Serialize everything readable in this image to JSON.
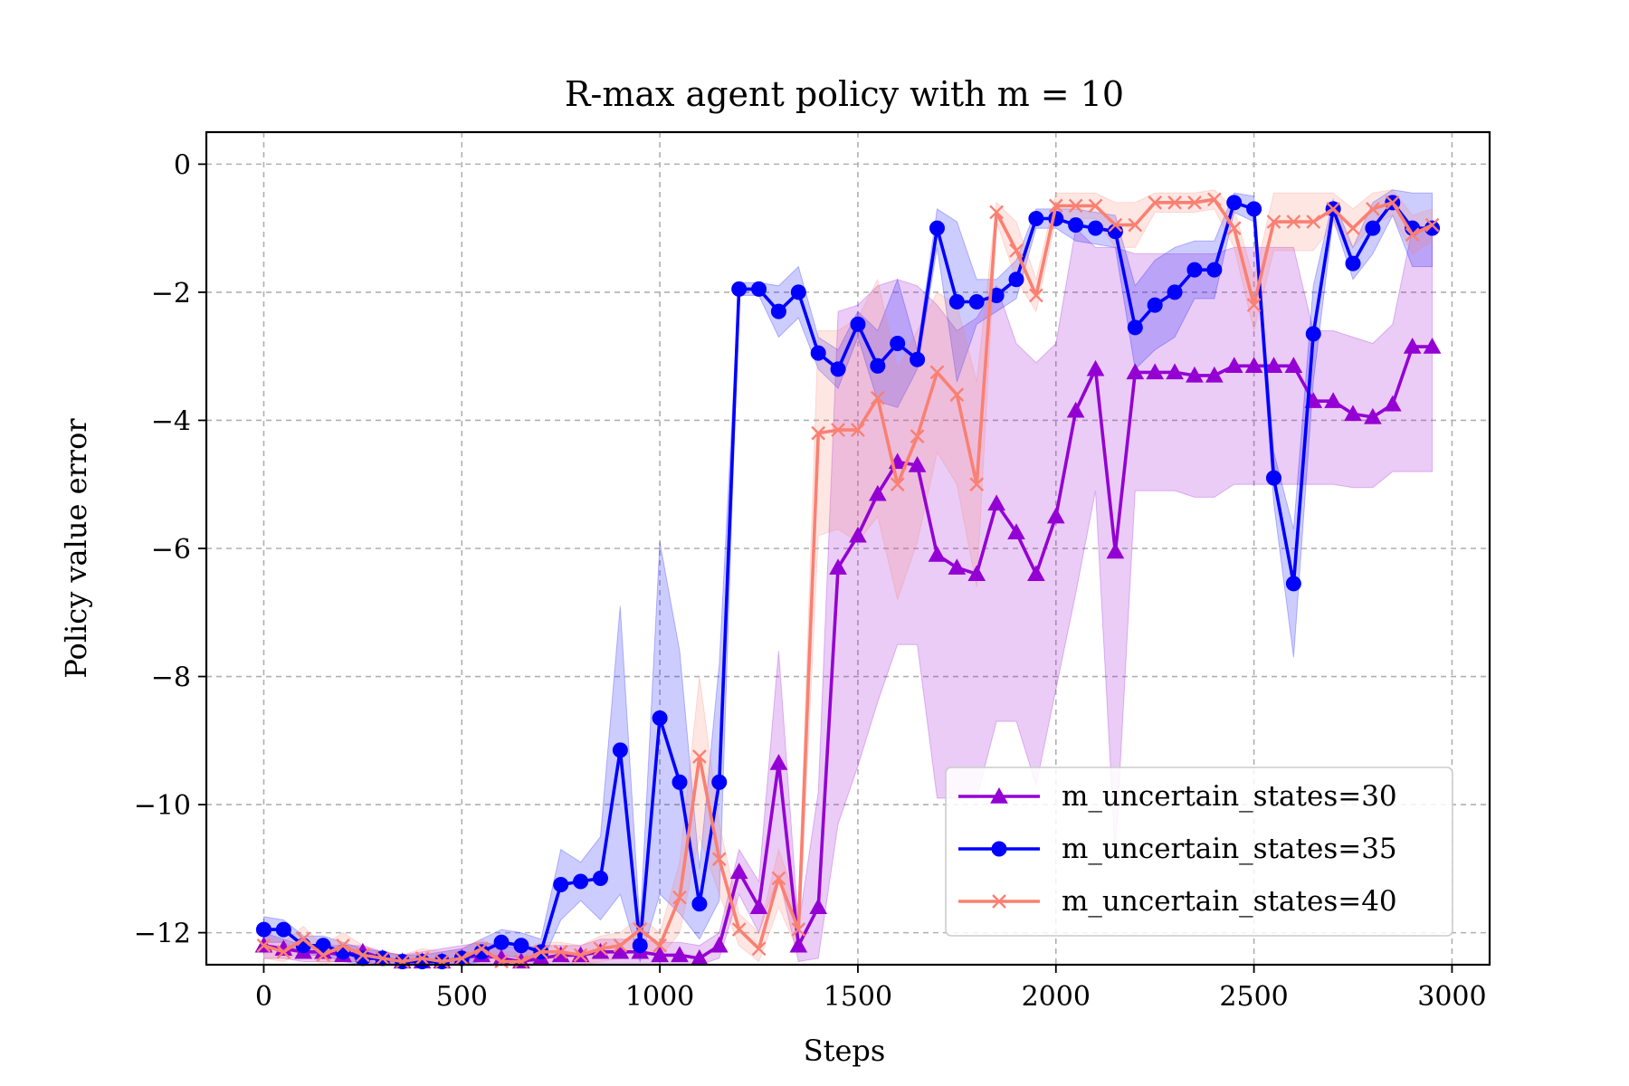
{
  "chart_data": {
    "type": "line",
    "title": "R-max agent policy with m = 10",
    "xlabel": "Steps",
    "ylabel": "Policy value error",
    "xlim": [
      -145,
      3095
    ],
    "ylim": [
      -12.5,
      0.5
    ],
    "xticks": [
      0,
      500,
      1000,
      1500,
      2000,
      2500,
      3000
    ],
    "yticks": [
      0,
      -2,
      -4,
      -6,
      -8,
      -10,
      -12
    ],
    "xtick_labels": [
      "0",
      "500",
      "1000",
      "1500",
      "2000",
      "2500",
      "3000"
    ],
    "ytick_labels": [
      "0",
      "−2",
      "−4",
      "−6",
      "−8",
      "−10",
      "−12"
    ],
    "grid": true,
    "legend_position": "lower-right",
    "x": [
      0,
      50,
      100,
      150,
      200,
      250,
      300,
      350,
      400,
      450,
      500,
      550,
      600,
      650,
      700,
      750,
      800,
      850,
      900,
      950,
      1000,
      1050,
      1100,
      1150,
      1200,
      1250,
      1300,
      1350,
      1400,
      1450,
      1500,
      1550,
      1600,
      1650,
      1700,
      1750,
      1800,
      1850,
      1900,
      1950,
      2000,
      2050,
      2100,
      2150,
      2200,
      2250,
      2300,
      2350,
      2400,
      2450,
      2500,
      2550,
      2600,
      2650,
      2700,
      2750,
      2800,
      2850,
      2900,
      2950
    ],
    "series": [
      {
        "name": "m_uncertain_states=30",
        "color": "#9400d3",
        "marker": "triangle",
        "values": [
          -12.2,
          -12.25,
          -12.3,
          -12.3,
          -12.35,
          -12.3,
          -12.4,
          -12.45,
          -12.45,
          -12.45,
          -12.4,
          -12.35,
          -12.4,
          -12.45,
          -12.4,
          -12.35,
          -12.35,
          -12.3,
          -12.3,
          -12.3,
          -12.35,
          -12.35,
          -12.4,
          -12.2,
          -11.05,
          -11.6,
          -9.35,
          -12.2,
          -11.6,
          -6.3,
          -5.8,
          -5.15,
          -4.65,
          -4.7,
          -6.1,
          -6.3,
          -6.4,
          -5.3,
          -5.75,
          -6.4,
          -5.5,
          -3.85,
          -3.2,
          -6.05,
          -3.25,
          -3.25,
          -3.25,
          -3.3,
          -3.3,
          -3.15,
          -3.15,
          -3.15,
          -3.15,
          -3.7,
          -3.7,
          -3.9,
          -3.95,
          -3.75,
          -2.85,
          -2.85
        ],
        "band_upper": [
          -12.0,
          -12.1,
          -12.2,
          -12.2,
          -12.2,
          -12.2,
          -12.3,
          -12.35,
          -12.3,
          -12.25,
          -12.2,
          -12.15,
          -12.2,
          -12.25,
          -12.2,
          -12.2,
          -12.2,
          -12.1,
          -12.1,
          -12.1,
          -12.15,
          -12.15,
          -12.2,
          -12.0,
          -10.7,
          -11.2,
          -7.6,
          -11.9,
          -9.8,
          -2.3,
          -2.2,
          -1.9,
          -1.8,
          -1.9,
          -2.2,
          -2.6,
          -2.4,
          -1.9,
          -2.8,
          -3.1,
          -2.8,
          -1.0,
          -1.3,
          -1.3,
          -1.4,
          -1.4,
          -1.4,
          -1.4,
          -1.4,
          -1.3,
          -1.3,
          -1.3,
          -1.3,
          -2.6,
          -2.6,
          -2.7,
          -2.8,
          -2.5,
          -1.0,
          -1.0
        ],
        "band_lower": [
          -12.4,
          -12.4,
          -12.45,
          -12.45,
          -12.45,
          -12.45,
          -12.5,
          -12.5,
          -12.5,
          -12.5,
          -12.5,
          -12.5,
          -12.5,
          -12.5,
          -12.5,
          -12.5,
          -12.5,
          -12.5,
          -12.5,
          -12.5,
          -12.5,
          -12.5,
          -12.5,
          -12.4,
          -11.4,
          -12.0,
          -11.1,
          -12.45,
          -12.4,
          -10.3,
          -9.4,
          -8.4,
          -7.5,
          -7.5,
          -9.9,
          -9.9,
          -9.9,
          -8.7,
          -8.7,
          -9.7,
          -8.2,
          -6.7,
          -5.1,
          -10.8,
          -5.1,
          -5.1,
          -5.1,
          -5.2,
          -5.2,
          -5.0,
          -5.0,
          -5.0,
          -5.0,
          -5.0,
          -5.0,
          -5.05,
          -5.05,
          -4.8,
          -4.8,
          -4.8
        ]
      },
      {
        "name": "m_uncertain_states=35",
        "color": "#0000ff",
        "marker": "circle",
        "values": [
          -11.95,
          -11.95,
          -12.2,
          -12.2,
          -12.3,
          -12.4,
          -12.4,
          -12.45,
          -12.45,
          -12.45,
          -12.4,
          -12.3,
          -12.15,
          -12.2,
          -12.3,
          -11.25,
          -11.2,
          -11.15,
          -9.15,
          -12.2,
          -8.65,
          -9.65,
          -11.55,
          -9.65,
          -1.95,
          -1.95,
          -2.3,
          -2.0,
          -2.95,
          -3.2,
          -2.5,
          -3.15,
          -2.8,
          -3.05,
          -1.0,
          -2.15,
          -2.15,
          -2.05,
          -1.8,
          -0.85,
          -0.85,
          -0.95,
          -1.0,
          -1.05,
          -2.55,
          -2.2,
          -2.0,
          -1.65,
          -1.65,
          -0.6,
          -0.7,
          -4.9,
          -6.55,
          -2.65,
          -0.7,
          -1.55,
          -1.0,
          -0.6,
          -1.0,
          -1.0
        ],
        "band_upper": [
          -11.75,
          -11.8,
          -12.05,
          -12.05,
          -12.15,
          -12.25,
          -12.3,
          -12.35,
          -12.35,
          -12.3,
          -12.25,
          -12.1,
          -11.95,
          -12.0,
          -12.1,
          -10.7,
          -10.9,
          -10.5,
          -6.9,
          -11.9,
          -5.9,
          -7.6,
          -11.0,
          -7.8,
          -1.85,
          -1.85,
          -1.9,
          -1.6,
          -2.7,
          -2.9,
          -2.3,
          -2.6,
          -1.8,
          -2.9,
          -0.7,
          -0.9,
          -1.8,
          -1.8,
          -1.5,
          -0.7,
          -0.7,
          -0.7,
          -0.75,
          -0.8,
          -1.9,
          -1.5,
          -1.3,
          -1.2,
          -1.2,
          -0.45,
          -0.5,
          -4.5,
          -5.7,
          -1.9,
          -0.55,
          -1.3,
          -0.6,
          -0.4,
          -0.45,
          -0.45
        ],
        "band_lower": [
          -12.15,
          -12.15,
          -12.35,
          -12.35,
          -12.45,
          -12.5,
          -12.5,
          -12.5,
          -12.5,
          -12.5,
          -12.5,
          -12.45,
          -12.35,
          -12.4,
          -12.5,
          -11.8,
          -11.5,
          -11.8,
          -11.4,
          -12.45,
          -11.4,
          -11.7,
          -12.1,
          -11.5,
          -2.05,
          -2.05,
          -2.7,
          -2.4,
          -3.2,
          -3.5,
          -2.7,
          -3.7,
          -3.8,
          -3.2,
          -1.3,
          -3.4,
          -2.5,
          -2.3,
          -2.1,
          -1.0,
          -1.0,
          -1.2,
          -1.25,
          -1.3,
          -3.2,
          -2.9,
          -2.7,
          -2.1,
          -2.1,
          -0.75,
          -0.9,
          -5.3,
          -7.7,
          -3.4,
          -0.85,
          -1.8,
          -1.4,
          -0.8,
          -1.6,
          -1.6
        ]
      },
      {
        "name": "m_uncertain_states=40",
        "color": "#fa8072",
        "marker": "x",
        "values": [
          -12.2,
          -12.3,
          -12.1,
          -12.35,
          -12.2,
          -12.35,
          -12.4,
          -12.45,
          -12.4,
          -12.45,
          -12.4,
          -12.25,
          -12.45,
          -12.45,
          -12.3,
          -12.3,
          -12.35,
          -12.25,
          -12.2,
          -11.95,
          -12.2,
          -11.45,
          -9.25,
          -10.85,
          -11.95,
          -12.25,
          -11.15,
          -11.95,
          -4.2,
          -4.15,
          -4.15,
          -3.65,
          -5.0,
          -4.25,
          -3.25,
          -3.6,
          -5.0,
          -0.75,
          -1.35,
          -2.05,
          -0.65,
          -0.65,
          -0.65,
          -0.95,
          -0.95,
          -0.6,
          -0.6,
          -0.6,
          -0.55,
          -1.0,
          -2.2,
          -0.9,
          -0.9,
          -0.9,
          -0.7,
          -1.0,
          -0.7,
          -0.6,
          -1.1,
          -0.95
        ],
        "band_upper": [
          -12.0,
          -12.15,
          -11.9,
          -12.2,
          -12.0,
          -12.2,
          -12.3,
          -12.35,
          -12.25,
          -12.3,
          -12.25,
          -12.1,
          -12.3,
          -12.3,
          -12.15,
          -12.15,
          -12.2,
          -12.05,
          -12.0,
          -11.75,
          -12.0,
          -10.9,
          -8.0,
          -10.3,
          -11.7,
          -12.0,
          -10.7,
          -11.6,
          -2.6,
          -2.6,
          -2.4,
          -1.8,
          -3.2,
          -2.6,
          -2.0,
          -2.2,
          -3.4,
          -0.6,
          -0.9,
          -1.8,
          -0.45,
          -0.45,
          -0.45,
          -0.6,
          -0.6,
          -0.45,
          -0.45,
          -0.45,
          -0.4,
          -0.7,
          -1.8,
          -0.45,
          -0.45,
          -0.45,
          -0.45,
          -0.7,
          -0.45,
          -0.4,
          -0.8,
          -0.7
        ],
        "band_lower": [
          -12.4,
          -12.45,
          -12.3,
          -12.5,
          -12.4,
          -12.5,
          -12.5,
          -12.5,
          -12.5,
          -12.5,
          -12.5,
          -12.4,
          -12.5,
          -12.5,
          -12.45,
          -12.45,
          -12.5,
          -12.45,
          -12.4,
          -12.15,
          -12.4,
          -12.0,
          -10.5,
          -11.4,
          -12.2,
          -12.45,
          -11.6,
          -12.3,
          -5.8,
          -5.7,
          -5.9,
          -5.5,
          -6.8,
          -5.9,
          -4.5,
          -5.0,
          -6.6,
          -0.9,
          -1.8,
          -2.3,
          -0.85,
          -0.85,
          -0.85,
          -1.3,
          -1.3,
          -0.75,
          -0.75,
          -0.75,
          -0.7,
          -1.3,
          -2.6,
          -1.35,
          -1.35,
          -1.35,
          -0.95,
          -1.3,
          -0.95,
          -0.8,
          -1.4,
          -1.2
        ]
      }
    ]
  }
}
